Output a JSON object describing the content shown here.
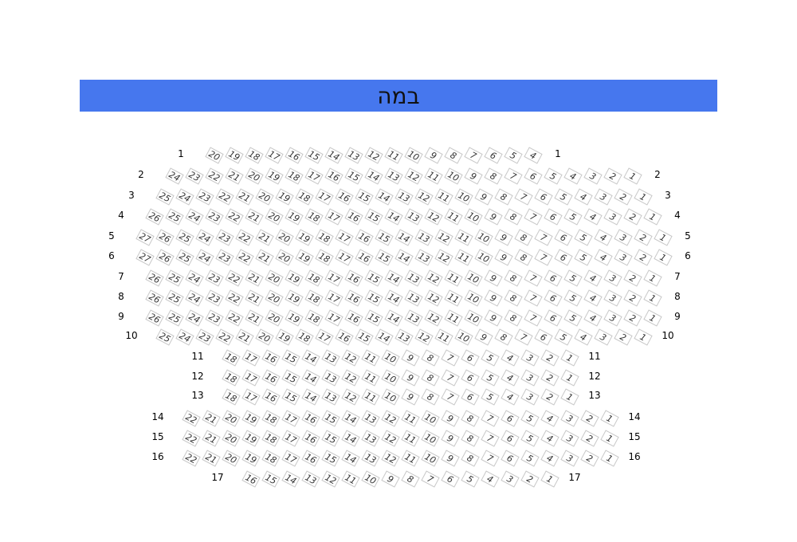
{
  "stage": {
    "label": "במה",
    "color": "#4677ee"
  },
  "rows": [
    {
      "label": "1",
      "seats": [
        20,
        19,
        18,
        17,
        16,
        15,
        14,
        13,
        12,
        11,
        10,
        9,
        8,
        7,
        6,
        5,
        4
      ]
    },
    {
      "label": "2",
      "seats": [
        24,
        23,
        22,
        21,
        20,
        19,
        18,
        17,
        16,
        15,
        14,
        13,
        12,
        11,
        10,
        9,
        8,
        7,
        6,
        5,
        4,
        3,
        2,
        1
      ]
    },
    {
      "label": "3",
      "seats": [
        25,
        24,
        23,
        22,
        21,
        20,
        19,
        18,
        17,
        16,
        15,
        14,
        13,
        12,
        11,
        10,
        9,
        8,
        7,
        6,
        5,
        4,
        3,
        2,
        1
      ]
    },
    {
      "label": "4",
      "seats": [
        26,
        25,
        24,
        23,
        22,
        21,
        20,
        19,
        18,
        17,
        16,
        15,
        14,
        13,
        12,
        11,
        10,
        9,
        8,
        7,
        6,
        5,
        4,
        3,
        2,
        1
      ]
    },
    {
      "label": "5",
      "seats": [
        27,
        26,
        25,
        24,
        23,
        22,
        21,
        20,
        19,
        18,
        17,
        16,
        15,
        14,
        13,
        12,
        11,
        10,
        9,
        8,
        7,
        6,
        5,
        4,
        3,
        2,
        1
      ]
    },
    {
      "label": "6",
      "seats": [
        27,
        26,
        25,
        24,
        23,
        22,
        21,
        20,
        19,
        18,
        17,
        16,
        15,
        14,
        13,
        12,
        11,
        10,
        9,
        8,
        7,
        6,
        5,
        4,
        3,
        2,
        1
      ]
    },
    {
      "label": "7",
      "seats": [
        26,
        25,
        24,
        23,
        22,
        21,
        20,
        19,
        18,
        17,
        16,
        15,
        14,
        13,
        12,
        11,
        10,
        9,
        8,
        7,
        6,
        5,
        4,
        3,
        2,
        1
      ]
    },
    {
      "label": "8",
      "seats": [
        26,
        25,
        24,
        23,
        22,
        21,
        20,
        19,
        18,
        17,
        16,
        15,
        14,
        13,
        12,
        11,
        10,
        9,
        8,
        7,
        6,
        5,
        4,
        3,
        2,
        1
      ]
    },
    {
      "label": "9",
      "seats": [
        26,
        25,
        24,
        23,
        22,
        21,
        20,
        19,
        18,
        17,
        16,
        15,
        14,
        13,
        12,
        11,
        10,
        9,
        8,
        7,
        6,
        5,
        4,
        3,
        2,
        1
      ]
    },
    {
      "label": "10",
      "seats": [
        25,
        24,
        23,
        22,
        21,
        20,
        19,
        18,
        17,
        16,
        15,
        14,
        13,
        12,
        11,
        10,
        9,
        8,
        7,
        6,
        5,
        4,
        3,
        2,
        1
      ]
    },
    {
      "label": "11",
      "seats": [
        18,
        17,
        16,
        15,
        14,
        13,
        12,
        11,
        10,
        9,
        8,
        7,
        6,
        5,
        4,
        3,
        2,
        1
      ]
    },
    {
      "label": "12",
      "seats": [
        18,
        17,
        16,
        15,
        14,
        13,
        12,
        11,
        10,
        9,
        8,
        7,
        6,
        5,
        4,
        3,
        2,
        1
      ]
    },
    {
      "label": "13",
      "seats": [
        18,
        17,
        16,
        15,
        14,
        13,
        12,
        11,
        10,
        9,
        8,
        7,
        6,
        5,
        4,
        3,
        2,
        1
      ]
    },
    {
      "label": "14",
      "seats": [
        22,
        21,
        20,
        19,
        18,
        17,
        16,
        15,
        14,
        13,
        12,
        11,
        10,
        9,
        8,
        7,
        6,
        5,
        4,
        3,
        2,
        1
      ]
    },
    {
      "label": "15",
      "seats": [
        22,
        21,
        20,
        19,
        18,
        17,
        16,
        15,
        14,
        13,
        12,
        11,
        10,
        9,
        8,
        7,
        6,
        5,
        4,
        3,
        2,
        1
      ]
    },
    {
      "label": "16",
      "seats": [
        22,
        21,
        20,
        19,
        18,
        17,
        16,
        15,
        14,
        13,
        12,
        11,
        10,
        9,
        8,
        7,
        6,
        5,
        4,
        3,
        2,
        1
      ]
    },
    {
      "label": "17",
      "seats": [
        16,
        15,
        14,
        13,
        12,
        11,
        10,
        9,
        8,
        7,
        6,
        5,
        4,
        3,
        2,
        1
      ]
    }
  ]
}
